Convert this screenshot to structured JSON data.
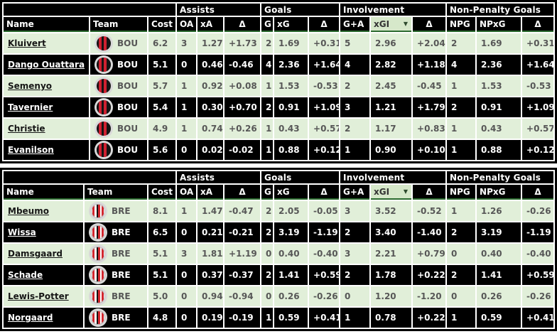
{
  "groups": {
    "assists": "Assists",
    "goals": "Goals",
    "involvement": "Involvement",
    "non_penalty": "Non-Penalty Goals"
  },
  "headers": {
    "name": "Name",
    "team": "Team",
    "cost": "Cost",
    "oa": "OA",
    "xa": "xA",
    "delta": "Δ",
    "g": "G",
    "xg": "xG",
    "ga": "G+A",
    "xgi": "xGI",
    "npg": "NPG",
    "npxg": "NPxG",
    "dropdown_icon": "▼"
  },
  "colors": {
    "row_light": "#e1efd9",
    "row_dark": "#000000",
    "header_bg": "#000000",
    "header_text": "#ffffff",
    "filter_cell_bg": "#d6e8ca",
    "header_underline": "#2c6b30",
    "value_text": "#575757",
    "bou_red": "#cf2030",
    "bre_red": "#d2262e"
  },
  "tables": [
    {
      "team_code": "BOU",
      "rows": [
        {
          "name": "Kluivert",
          "team": "BOU",
          "cost": "6.2",
          "oa": "3",
          "xa": "1.27",
          "d_a": "+1.73",
          "g": "2",
          "xg": "1.69",
          "d_g": "+0.31",
          "ga": "5",
          "xgi": "2.96",
          "d_i": "+2.04",
          "npg": "2",
          "npxg": "1.69",
          "d_np": "+0.31"
        },
        {
          "name": "Dango Ouattara",
          "team": "BOU",
          "cost": "5.1",
          "oa": "0",
          "xa": "0.46",
          "d_a": "-0.46",
          "g": "4",
          "xg": "2.36",
          "d_g": "+1.64",
          "ga": "4",
          "xgi": "2.82",
          "d_i": "+1.18",
          "npg": "4",
          "npxg": "2.36",
          "d_np": "+1.64"
        },
        {
          "name": "Semenyo",
          "team": "BOU",
          "cost": "5.7",
          "oa": "1",
          "xa": "0.92",
          "d_a": "+0.08",
          "g": "1",
          "xg": "1.53",
          "d_g": "-0.53",
          "ga": "2",
          "xgi": "2.45",
          "d_i": "-0.45",
          "npg": "1",
          "npxg": "1.53",
          "d_np": "-0.53"
        },
        {
          "name": "Tavernier",
          "team": "BOU",
          "cost": "5.4",
          "oa": "1",
          "xa": "0.30",
          "d_a": "+0.70",
          "g": "2",
          "xg": "0.91",
          "d_g": "+1.09",
          "ga": "3",
          "xgi": "1.21",
          "d_i": "+1.79",
          "npg": "2",
          "npxg": "0.91",
          "d_np": "+1.09"
        },
        {
          "name": "Christie",
          "team": "BOU",
          "cost": "4.9",
          "oa": "1",
          "xa": "0.74",
          "d_a": "+0.26",
          "g": "1",
          "xg": "0.43",
          "d_g": "+0.57",
          "ga": "2",
          "xgi": "1.17",
          "d_i": "+0.83",
          "npg": "1",
          "npxg": "0.43",
          "d_np": "+0.57"
        },
        {
          "name": "Evanilson",
          "team": "BOU",
          "cost": "5.6",
          "oa": "0",
          "xa": "0.02",
          "d_a": "-0.02",
          "g": "1",
          "xg": "0.88",
          "d_g": "+0.12",
          "ga": "1",
          "xgi": "0.90",
          "d_i": "+0.10",
          "npg": "1",
          "npxg": "0.88",
          "d_np": "+0.12"
        }
      ]
    },
    {
      "team_code": "BRE",
      "rows": [
        {
          "name": "Mbeumo",
          "team": "BRE",
          "cost": "8.1",
          "oa": "1",
          "xa": "1.47",
          "d_a": "-0.47",
          "g": "2",
          "xg": "2.05",
          "d_g": "-0.05",
          "ga": "3",
          "xgi": "3.52",
          "d_i": "-0.52",
          "npg": "1",
          "npxg": "1.26",
          "d_np": "-0.26"
        },
        {
          "name": "Wissa",
          "team": "BRE",
          "cost": "6.5",
          "oa": "0",
          "xa": "0.21",
          "d_a": "-0.21",
          "g": "2",
          "xg": "3.19",
          "d_g": "-1.19",
          "ga": "2",
          "xgi": "3.40",
          "d_i": "-1.40",
          "npg": "2",
          "npxg": "3.19",
          "d_np": "-1.19"
        },
        {
          "name": "Damsgaard",
          "team": "BRE",
          "cost": "5.1",
          "oa": "3",
          "xa": "1.81",
          "d_a": "+1.19",
          "g": "0",
          "xg": "0.40",
          "d_g": "-0.40",
          "ga": "3",
          "xgi": "2.21",
          "d_i": "+0.79",
          "npg": "0",
          "npxg": "0.40",
          "d_np": "-0.40"
        },
        {
          "name": "Schade",
          "team": "BRE",
          "cost": "5.1",
          "oa": "0",
          "xa": "0.37",
          "d_a": "-0.37",
          "g": "2",
          "xg": "1.41",
          "d_g": "+0.59",
          "ga": "2",
          "xgi": "1.78",
          "d_i": "+0.22",
          "npg": "2",
          "npxg": "1.41",
          "d_np": "+0.59"
        },
        {
          "name": "Lewis-Potter",
          "team": "BRE",
          "cost": "5.0",
          "oa": "0",
          "xa": "0.94",
          "d_a": "-0.94",
          "g": "0",
          "xg": "0.26",
          "d_g": "-0.26",
          "ga": "0",
          "xgi": "1.20",
          "d_i": "-1.20",
          "npg": "0",
          "npxg": "0.26",
          "d_np": "-0.26"
        },
        {
          "name": "Norgaard",
          "team": "BRE",
          "cost": "4.8",
          "oa": "0",
          "xa": "0.19",
          "d_a": "-0.19",
          "g": "1",
          "xg": "0.59",
          "d_g": "+0.41",
          "ga": "1",
          "xgi": "0.78",
          "d_i": "+0.22",
          "npg": "1",
          "npxg": "0.59",
          "d_np": "+0.41"
        }
      ]
    }
  ]
}
